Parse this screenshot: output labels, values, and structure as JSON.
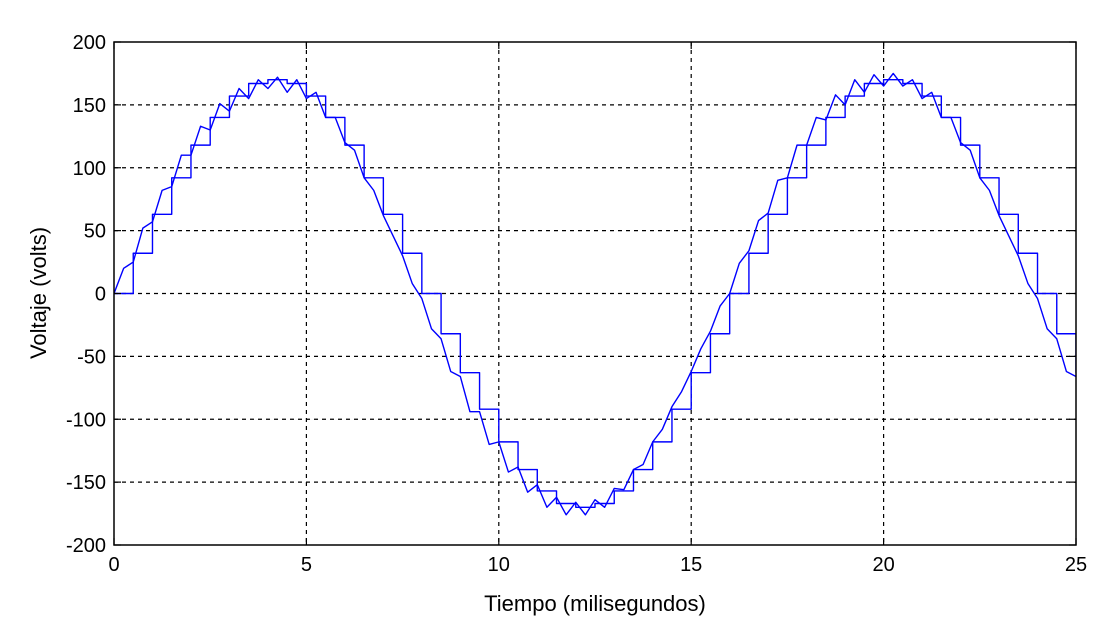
{
  "chart_data": {
    "type": "line",
    "title": "",
    "xlabel": "Tiempo (milisegundos)",
    "ylabel": "Voltaje (volts)",
    "xlim": [
      0,
      25
    ],
    "ylim": [
      -200,
      200
    ],
    "xticks": [
      "0",
      "5",
      "10",
      "15",
      "20",
      "25"
    ],
    "yticks": [
      "200",
      "150",
      "100",
      "50",
      "0",
      "-50",
      "-100",
      "-150",
      "-200"
    ],
    "grid": true,
    "grid_style": "dashed",
    "line_color": "#0000ff",
    "series": [
      {
        "kind": "staircase",
        "step_ms": 0.5,
        "x": [
          0,
          0.5,
          1,
          1.5,
          2,
          2.5,
          3,
          3.5,
          4,
          4.5,
          5,
          5.5,
          6,
          6.5,
          7,
          7.5,
          8,
          8.5,
          9,
          9.5,
          10,
          10.5,
          11,
          11.5,
          12,
          12.5,
          13,
          13.5,
          14,
          14.5,
          15,
          15.5,
          16,
          16.5,
          17,
          17.5,
          18,
          18.5,
          19,
          19.5,
          20,
          20.5,
          21,
          21.5,
          22,
          22.5,
          23,
          23.5,
          24,
          24.5,
          25
        ],
        "y": [
          0,
          32,
          63,
          92,
          118,
          140,
          157,
          167,
          170,
          167,
          157,
          140,
          118,
          92,
          63,
          32,
          0,
          -32,
          -63,
          -92,
          -118,
          -140,
          -157,
          -167,
          -170,
          -167,
          -157,
          -140,
          -118,
          -92,
          -63,
          -32,
          0,
          32,
          63,
          92,
          118,
          140,
          157,
          167,
          170,
          167,
          157,
          140,
          118,
          92,
          63,
          32,
          0,
          -32,
          -63
        ]
      },
      {
        "kind": "ripple",
        "x": [
          0,
          0.25,
          0.5,
          0.75,
          1,
          1.25,
          1.5,
          1.75,
          2,
          2.25,
          2.5,
          2.75,
          3,
          3.25,
          3.5,
          3.75,
          4,
          4.25,
          4.5,
          4.75,
          5,
          5.25,
          5.5,
          5.75,
          6,
          6.25,
          6.5,
          6.75,
          7,
          7.25,
          7.5,
          7.75,
          8,
          8.25,
          8.5,
          8.75,
          9,
          9.25,
          9.5,
          9.75,
          10,
          10.25,
          10.5,
          10.75,
          11,
          11.25,
          11.5,
          11.75,
          12,
          12.25,
          12.5,
          12.75,
          13,
          13.25,
          13.5,
          13.75,
          14,
          14.25,
          14.5,
          14.75,
          15,
          15.25,
          15.5,
          15.75,
          16,
          16.25,
          16.5,
          16.75,
          17,
          17.25,
          17.5,
          17.75,
          18,
          18.25,
          18.5,
          18.75,
          19,
          19.25,
          19.5,
          19.75,
          20,
          20.25,
          20.5,
          20.75,
          21,
          21.25,
          21.5,
          21.75,
          22,
          22.25,
          22.5,
          22.75,
          23,
          23.25,
          23.5,
          23.75,
          24,
          24.25,
          24.5,
          24.75,
          25
        ],
        "y": [
          0,
          20,
          25,
          52,
          57,
          82,
          85,
          110,
          110,
          133,
          130,
          151,
          145,
          163,
          155,
          170,
          163,
          172,
          160,
          170,
          155,
          160,
          140,
          140,
          120,
          114,
          92,
          82,
          62,
          46,
          30,
          8,
          -4,
          -28,
          -36,
          -62,
          -66,
          -94,
          -94,
          -120,
          -118,
          -142,
          -138,
          -158,
          -152,
          -170,
          -162,
          -176,
          -166,
          -176,
          -164,
          -170,
          -155,
          -156,
          -140,
          -136,
          -118,
          -108,
          -90,
          -78,
          -62,
          -44,
          -30,
          -10,
          0,
          24,
          34,
          58,
          64,
          90,
          92,
          118,
          118,
          140,
          138,
          158,
          150,
          170,
          160,
          174,
          165,
          175,
          165,
          170,
          155,
          160,
          140,
          140,
          120,
          114,
          92,
          82,
          62,
          46,
          30,
          8,
          -4,
          -28,
          -36,
          -62,
          -66
        ]
      }
    ]
  }
}
